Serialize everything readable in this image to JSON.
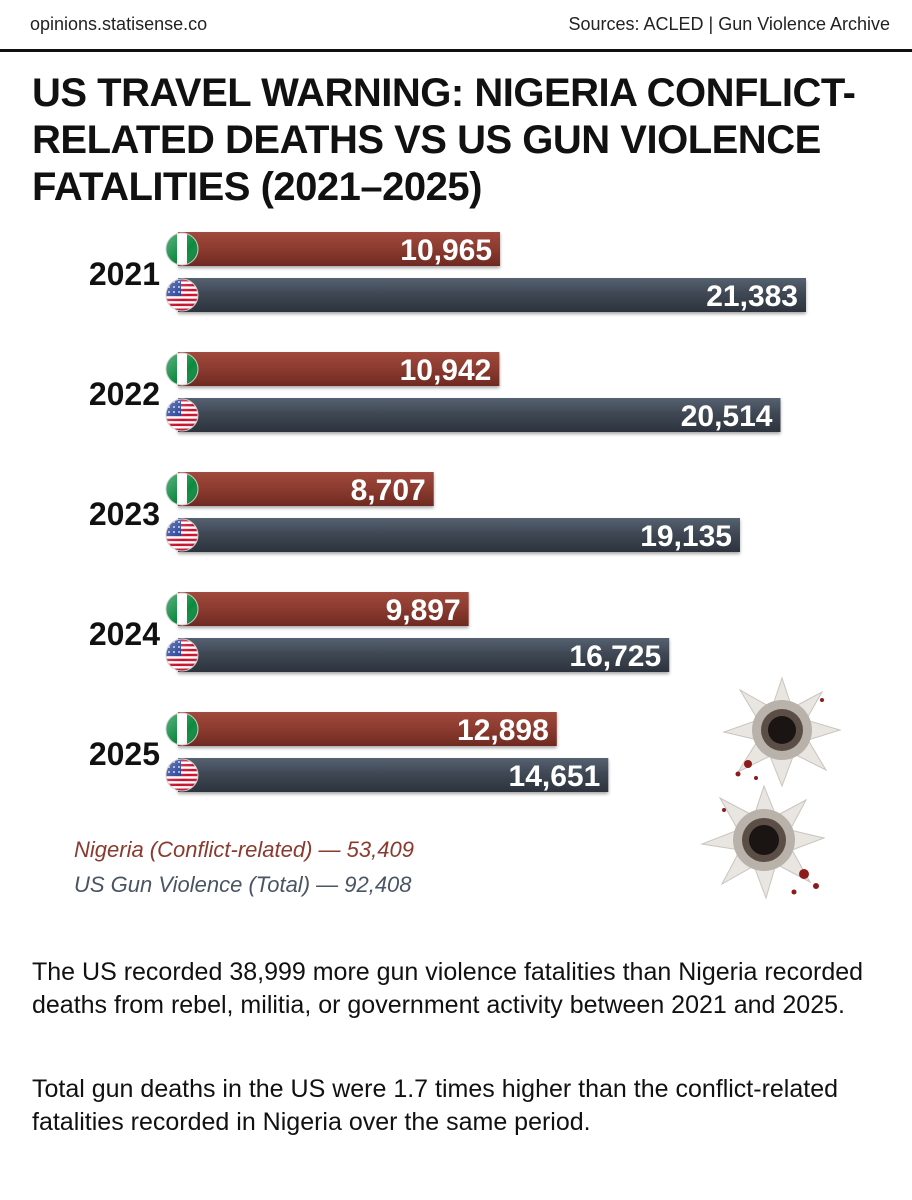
{
  "header": {
    "site": "opinions.statisense.co",
    "sources": "Sources: ACLED | Gun Violence Archive"
  },
  "title": "US TRAVEL WARNING: NIGERIA CONFLICT-RELATED DEATHS VS US GUN VIOLENCE FATALITIES (2021–2025)",
  "legend": {
    "nigeria": "Nigeria (Conflict-related) — 53,409",
    "us": "US Gun Violence (Total) — 92,408"
  },
  "colors": {
    "nigeria_bar": "#8b3a2f",
    "us_bar": "#3d4652",
    "nigeria_text": "#8a3a2e",
    "us_text": "#4a5564"
  },
  "icons": [
    "nigeria-flag-icon",
    "us-flag-icon",
    "bullet-hole-icon"
  ],
  "chart_data": {
    "type": "bar",
    "orientation": "horizontal",
    "categories": [
      "2021",
      "2022",
      "2023",
      "2024",
      "2025"
    ],
    "series": [
      {
        "name": "Nigeria (Conflict-related)",
        "values": [
          10965,
          10942,
          8707,
          9897,
          12898
        ],
        "labels": [
          "10,965",
          "10,942",
          "8,707",
          "9,897",
          "12,898"
        ]
      },
      {
        "name": "US Gun Violence (Total)",
        "values": [
          21383,
          20514,
          19135,
          16725,
          14651
        ],
        "labels": [
          "21,383",
          "20,514",
          "19,135",
          "16,725",
          "14,651"
        ]
      }
    ],
    "title": "",
    "xlabel": "",
    "ylabel": "",
    "grid": false
  },
  "paragraphs": [
    "The US recorded 38,999 more gun violence fatalities than Nigeria recorded deaths from rebel, militia, or government activity between 2021 and 2025.",
    "Total gun deaths in the US were 1.7 times higher than the conflict-related fatalities recorded in Nigeria over the same period."
  ]
}
